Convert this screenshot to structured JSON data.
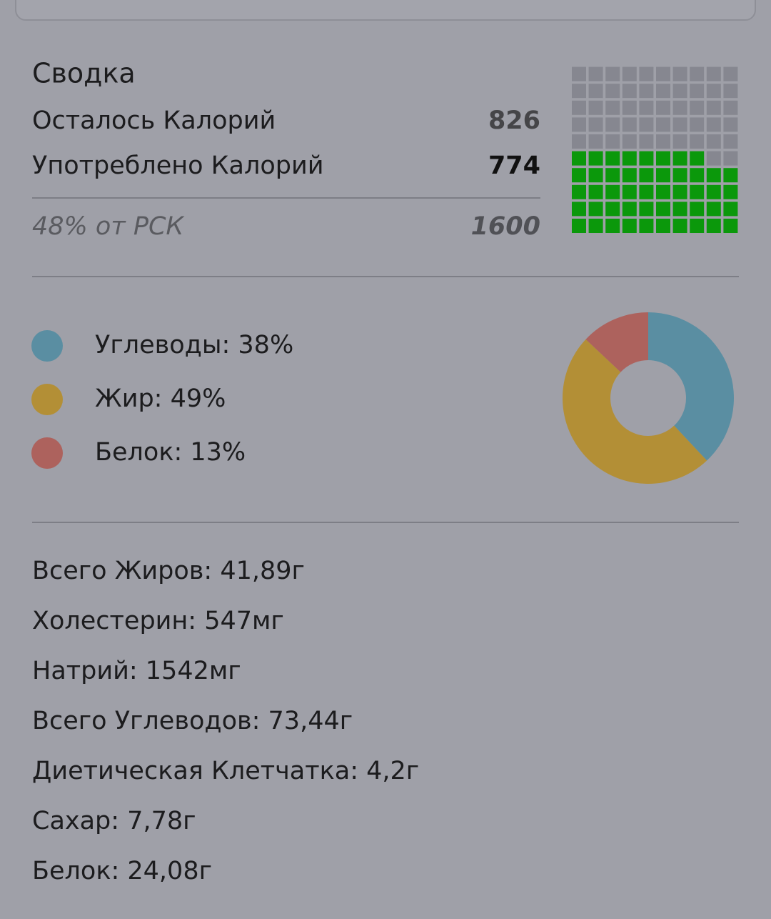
{
  "summary": {
    "title": "Сводка",
    "rows": [
      {
        "label": "Осталось Калорий",
        "value": "826"
      },
      {
        "label": "Употреблено Калорий",
        "value": "774"
      }
    ],
    "footer": {
      "label": "48% от РСК",
      "value": "1600"
    }
  },
  "waffle": {
    "filled": 48,
    "total": 100,
    "columns": 10,
    "filled_color": "#0b980b",
    "empty_color": "#868790"
  },
  "macros": {
    "type": "donut",
    "labels": [
      "Углеводы: 38%",
      "Жир: 49%",
      "Белок: 13%"
    ],
    "values": [
      38,
      49,
      13
    ],
    "colors": [
      "#5a8ea2",
      "#b38f36",
      "#ad625d"
    ]
  },
  "nutrients": [
    "Всего Жиров: 41,89г",
    "Холестерин: 547мг",
    "Натрий: 1542мг",
    "Всего Углеводов: 73,44г",
    "Диетическая Клетчатка: 4,2г",
    "Сахар: 7,78г",
    "Белок: 24,08г"
  ]
}
